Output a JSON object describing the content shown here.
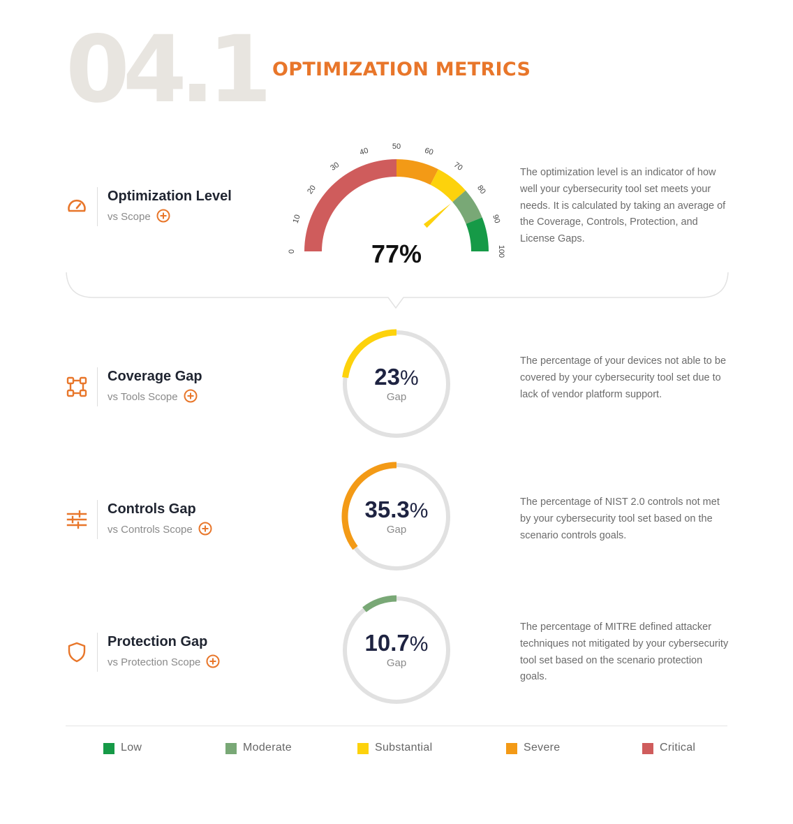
{
  "header": {
    "section_number": "04.1",
    "title": "OPTIMIZATION METRICS"
  },
  "colors": {
    "accent": "#e8762a",
    "low": "#169a47",
    "moderate": "#79a876",
    "substantial": "#fdd20c",
    "severe": "#f39a16",
    "critical": "#cf5c5c",
    "ring_track": "#e1e1e1",
    "value_text": "#1e2341"
  },
  "optimization": {
    "title": "Optimization Level",
    "subtitle": "vs Scope",
    "icon": "speedometer-icon",
    "value_text": "77%",
    "value": 77,
    "gauge_ticks": [
      "0",
      "10",
      "20",
      "30",
      "40",
      "50",
      "60",
      "70",
      "80",
      "90",
      "100"
    ],
    "bands": [
      {
        "from": 0,
        "to": 50,
        "level": "critical"
      },
      {
        "from": 50,
        "to": 65,
        "level": "severe"
      },
      {
        "from": 65,
        "to": 77,
        "level": "substantial"
      },
      {
        "from": 77,
        "to": 88,
        "level": "moderate"
      },
      {
        "from": 88,
        "to": 100,
        "level": "low"
      }
    ],
    "description": "The optimization level is an indicator of how well your cybersecurity tool set meets your needs. It is calculated by taking an average of the Coverage, Controls, Protection, and License Gaps."
  },
  "metrics": [
    {
      "title": "Coverage Gap",
      "subtitle": "vs Tools Scope",
      "icon": "network-nodes-icon",
      "value_number": "23",
      "value_unit": "%",
      "value": 23,
      "level": "substantial",
      "caption": "Gap",
      "description": "The percentage of your devices not able to be covered by your cybersecurity tool set due to lack of vendor platform support."
    },
    {
      "title": "Controls Gap",
      "subtitle": "vs Controls Scope",
      "icon": "sliders-icon",
      "value_number": "35.3",
      "value_unit": "%",
      "value": 35.3,
      "level": "severe",
      "caption": "Gap",
      "description": "The percentage of NIST 2.0 controls not met by your cybersecurity tool set based on the scenario controls goals."
    },
    {
      "title": "Protection Gap",
      "subtitle": "vs Protection Scope",
      "icon": "shield-icon",
      "value_number": "10.7",
      "value_unit": "%",
      "value": 10.7,
      "level": "moderate",
      "caption": "Gap",
      "description": "The percentage of MITRE defined attacker techniques not mitigated by your cybersecurity tool set based on the scenario protection goals."
    }
  ],
  "legend": [
    {
      "label": "Low",
      "level": "low"
    },
    {
      "label": "Moderate",
      "level": "moderate"
    },
    {
      "label": "Substantial",
      "level": "substantial"
    },
    {
      "label": "Severe",
      "level": "severe"
    },
    {
      "label": "Critical",
      "level": "critical"
    }
  ]
}
